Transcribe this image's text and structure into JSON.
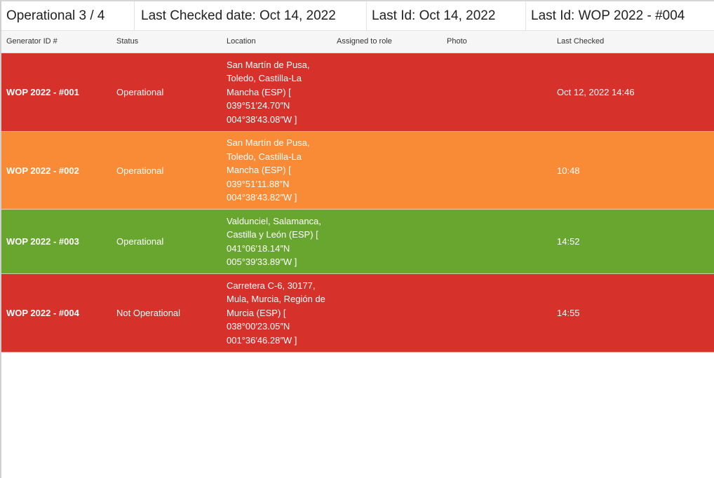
{
  "summary": {
    "operational": "Operational 3 / 4",
    "last_checked": "Last Checked date: Oct 14, 2022",
    "last_id_date": "Last Id: Oct 14, 2022",
    "last_id": "Last Id: WOP 2022 - #004"
  },
  "table": {
    "headers": {
      "generator_id": "Generator ID #",
      "status": "Status",
      "location": "Location",
      "assigned_role": "Assigned to role",
      "photo": "Photo",
      "last_checked": "Last Checked"
    },
    "rows": [
      {
        "id": "WOP 2022 - #001",
        "status": "Operational",
        "location": "San Martín de Pusa, Toledo, Castilla-La Mancha (ESP) [ 039°51′24.70″N 004°38′43.08″W ]",
        "assigned_role": "",
        "photo": "",
        "last_checked": "Oct 12, 2022 14:46",
        "color": "#d6312b"
      },
      {
        "id": "WOP 2022 - #002",
        "status": "Operational",
        "location": "San Martín de Pusa, Toledo, Castilla-La Mancha (ESP) [ 039°51′11.88″N 004°38′43.82″W ]",
        "assigned_role": "",
        "photo": "",
        "last_checked": "10:48",
        "color": "#f98b37"
      },
      {
        "id": "WOP 2022 - #003",
        "status": "Operational",
        "location": "Valdunciel, Salamanca, Castilla y León (ESP) [ 041°06′18.14″N 005°39′33.89″W ]",
        "assigned_role": "",
        "photo": "",
        "last_checked": "14:52",
        "color": "#68a62f"
      },
      {
        "id": "WOP 2022 - #004",
        "status": "Not Operational",
        "location": "Carretera C-6, 30177, Mula, Murcia, Región de Murcia (ESP) [ 038°00′23.05″N 001°36′46.28″W ]",
        "assigned_role": "",
        "photo": "",
        "last_checked": "14:55",
        "color": "#d6312b"
      }
    ]
  }
}
